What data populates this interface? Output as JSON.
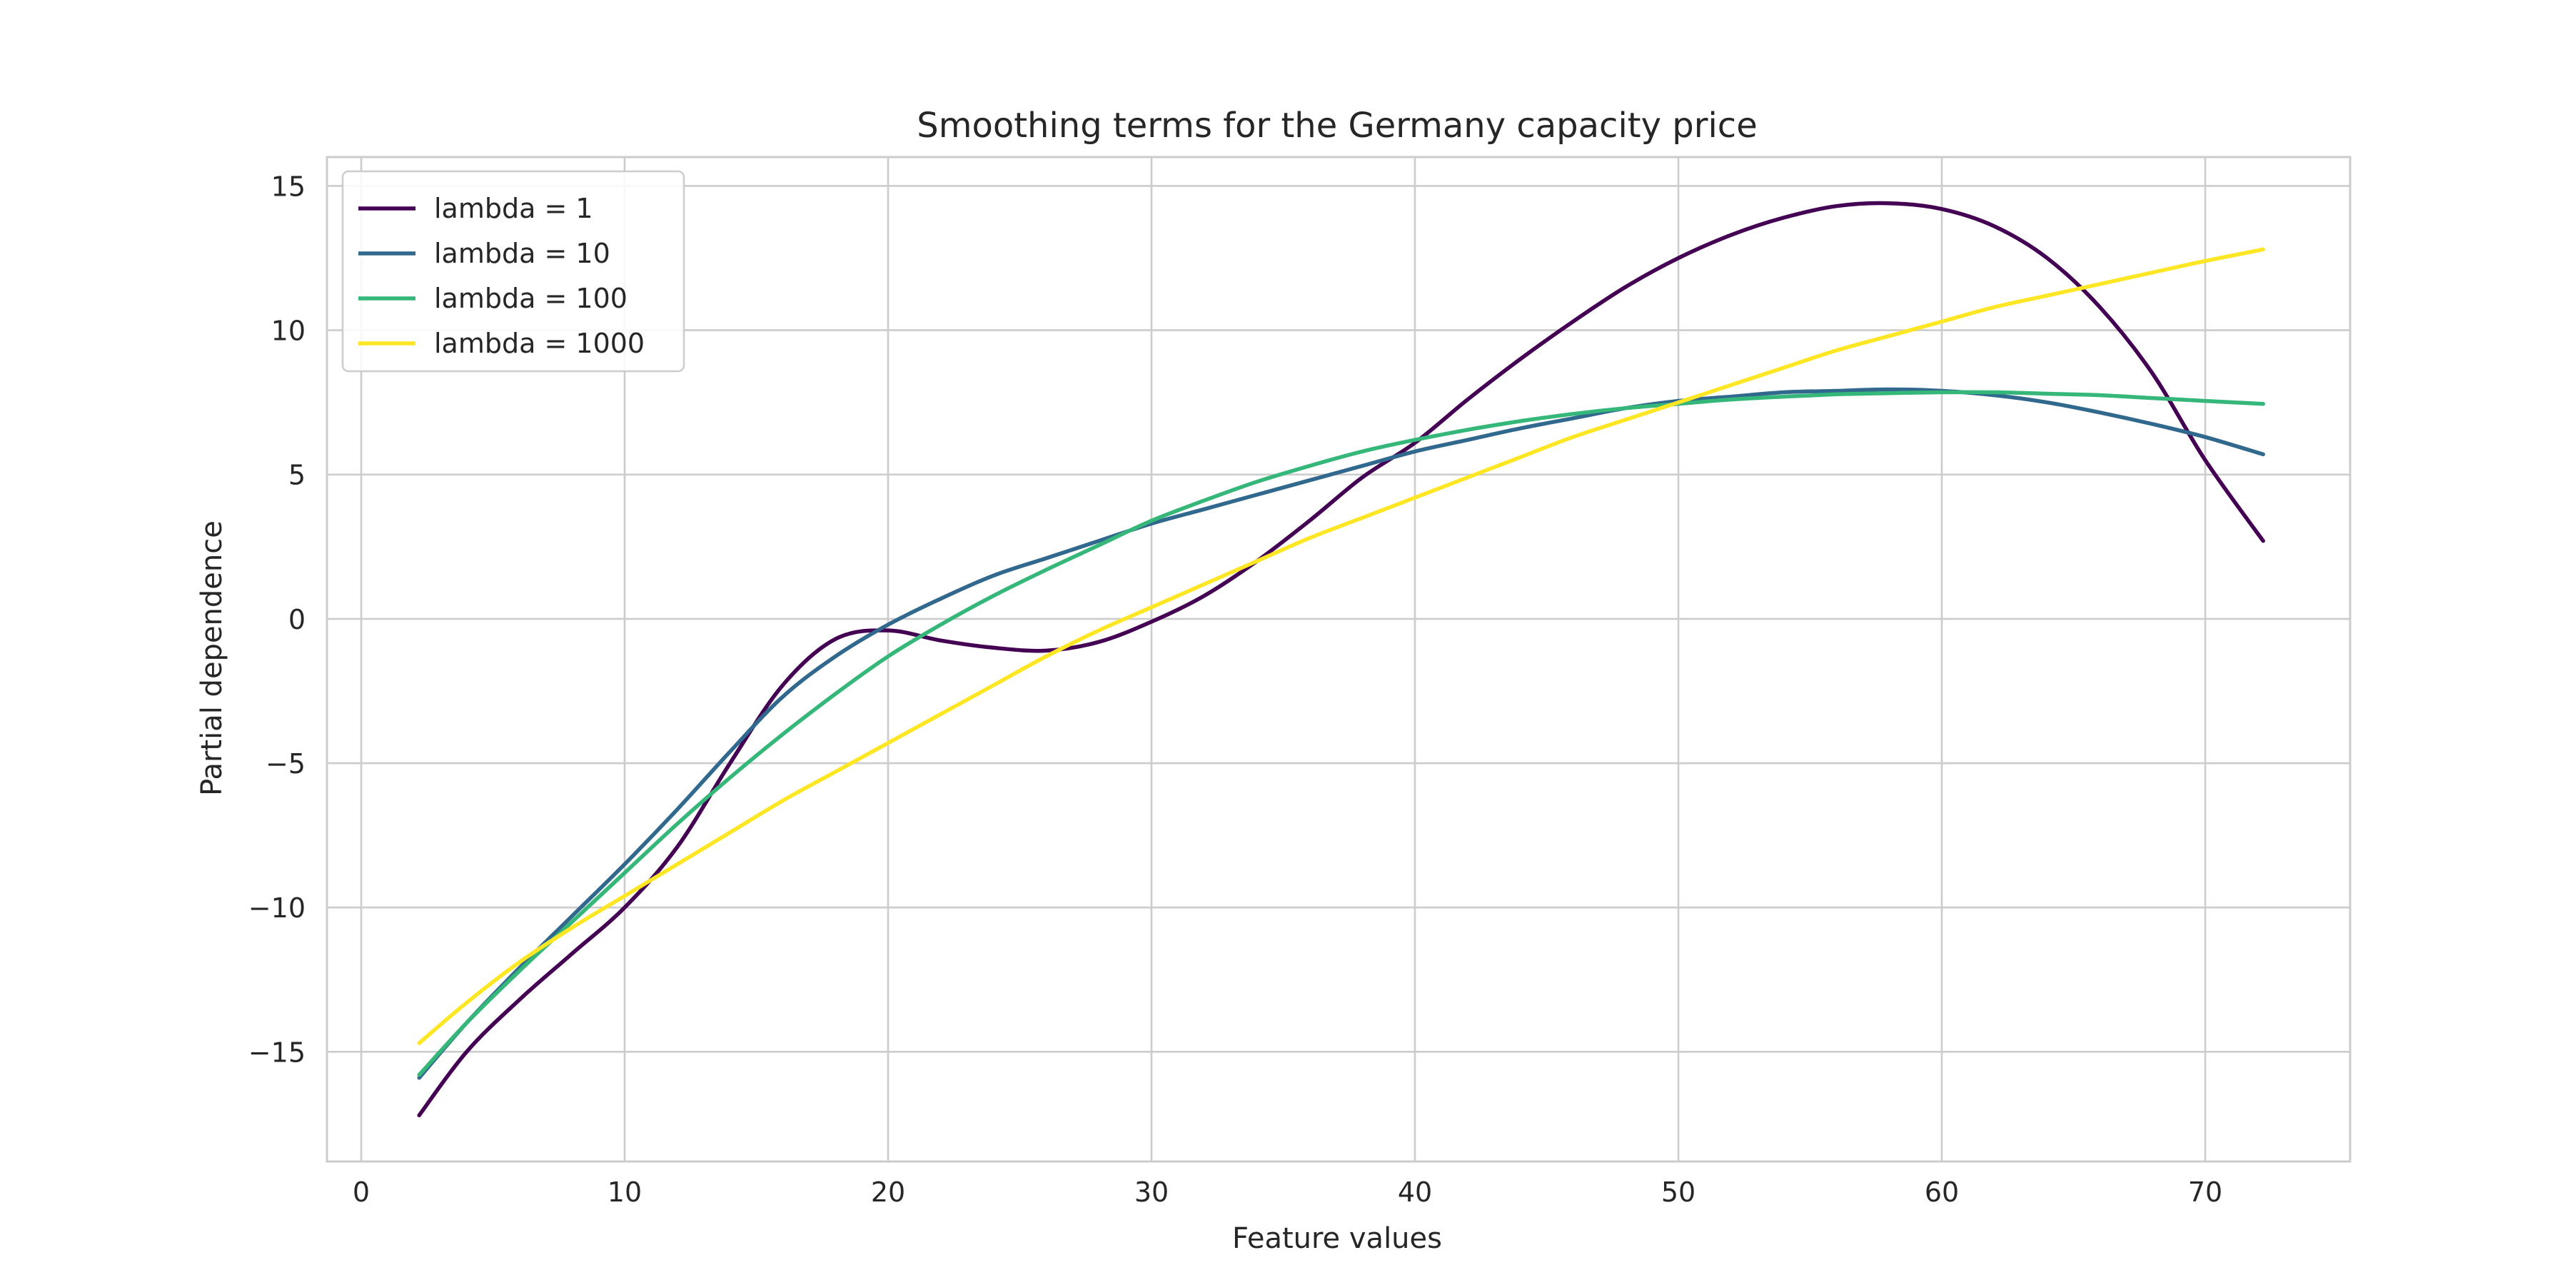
{
  "chart_data": {
    "type": "line",
    "title": "Smoothing terms for the Germany capacity price",
    "xlabel": "Feature values",
    "ylabel": "Partial dependence",
    "xlim": [
      -1.3,
      75.5
    ],
    "ylim": [
      -18.8,
      16.0
    ],
    "xticks": [
      0,
      10,
      20,
      30,
      40,
      50,
      60,
      70
    ],
    "yticks": [
      -15,
      -10,
      -5,
      0,
      5,
      10,
      15
    ],
    "grid": true,
    "legend_position": "top-left",
    "x": [
      2.2,
      4,
      6,
      8,
      10,
      12,
      14,
      16,
      18,
      20,
      22,
      24,
      26,
      28,
      30,
      32,
      34,
      36,
      38,
      40,
      42,
      44,
      46,
      48,
      50,
      52,
      54,
      56,
      58,
      60,
      62,
      64,
      66,
      68,
      70,
      72.2
    ],
    "series": [
      {
        "name": "lambda = 1",
        "color": "#440154",
        "values": [
          -17.2,
          -15.0,
          -13.2,
          -11.6,
          -10.0,
          -7.9,
          -5.0,
          -2.3,
          -0.7,
          -0.4,
          -0.75,
          -1.0,
          -1.1,
          -0.8,
          -0.1,
          0.8,
          2.0,
          3.4,
          4.9,
          6.1,
          7.6,
          9.0,
          10.3,
          11.5,
          12.5,
          13.3,
          13.9,
          14.3,
          14.4,
          14.2,
          13.6,
          12.5,
          10.8,
          8.5,
          5.5,
          2.7
        ]
      },
      {
        "name": "lambda = 10",
        "color": "#31688e",
        "values": [
          -15.9,
          -14.0,
          -12.1,
          -10.3,
          -8.5,
          -6.6,
          -4.6,
          -2.7,
          -1.3,
          -0.2,
          0.7,
          1.5,
          2.1,
          2.7,
          3.3,
          3.8,
          4.3,
          4.8,
          5.3,
          5.8,
          6.2,
          6.6,
          6.95,
          7.3,
          7.55,
          7.7,
          7.85,
          7.9,
          7.95,
          7.9,
          7.75,
          7.5,
          7.15,
          6.75,
          6.3,
          5.7
        ]
      },
      {
        "name": "lambda = 100",
        "color": "#35b779",
        "values": [
          -15.8,
          -14.0,
          -12.2,
          -10.5,
          -8.8,
          -7.1,
          -5.5,
          -4.0,
          -2.6,
          -1.3,
          -0.2,
          0.8,
          1.7,
          2.55,
          3.4,
          4.1,
          4.75,
          5.3,
          5.8,
          6.2,
          6.55,
          6.85,
          7.1,
          7.3,
          7.45,
          7.6,
          7.7,
          7.78,
          7.82,
          7.85,
          7.85,
          7.8,
          7.75,
          7.65,
          7.55,
          7.45
        ]
      },
      {
        "name": "lambda = 1000",
        "color": "#fde725",
        "values": [
          -14.7,
          -13.3,
          -11.9,
          -10.7,
          -9.6,
          -8.5,
          -7.4,
          -6.3,
          -5.3,
          -4.3,
          -3.3,
          -2.3,
          -1.3,
          -0.4,
          0.4,
          1.2,
          2.0,
          2.8,
          3.5,
          4.2,
          4.9,
          5.6,
          6.3,
          6.9,
          7.5,
          8.1,
          8.7,
          9.3,
          9.8,
          10.3,
          10.8,
          11.2,
          11.6,
          12.0,
          12.4,
          12.8
        ]
      }
    ]
  }
}
